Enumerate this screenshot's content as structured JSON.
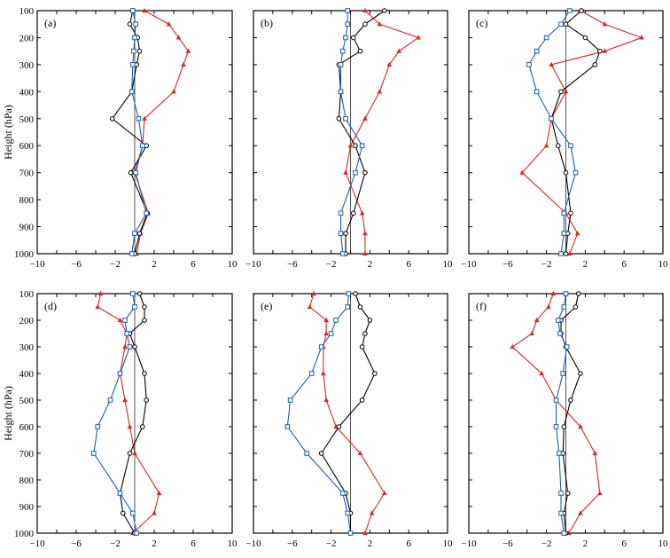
{
  "chart_data": {
    "type": "line",
    "ylabel": "Height (hPa)",
    "xlim": [
      -10,
      10
    ],
    "ylim": [
      1000,
      100
    ],
    "xticks": [
      "−10",
      "−6",
      "−2",
      "2",
      "6",
      "10"
    ],
    "xtick_values": [
      -10,
      -6,
      -2,
      2,
      6,
      10
    ],
    "yticks": [
      "100",
      "200",
      "300",
      "400",
      "500",
      "600",
      "700",
      "800",
      "900",
      "1000"
    ],
    "ytick_values": [
      100,
      200,
      300,
      400,
      500,
      600,
      700,
      800,
      900,
      1000
    ],
    "levels": [
      100,
      150,
      200,
      250,
      300,
      400,
      500,
      600,
      700,
      850,
      925,
      1000
    ],
    "series_colors": {
      "red": "#d62728",
      "black": "#000000",
      "blue": "#1f5fa8"
    },
    "panels": [
      {
        "label": "(a)",
        "series": [
          {
            "color": "red",
            "marker": "triangle",
            "values": [
              1,
              3.5,
              4.5,
              5.5,
              5,
              4,
              1,
              0.8,
              0,
              1.4,
              0.6,
              0.2
            ]
          },
          {
            "color": "black",
            "marker": "circle",
            "values": [
              -0.2,
              -0.5,
              0.3,
              0.5,
              0.2,
              -0.3,
              -2.3,
              1.2,
              -0.4,
              1.3,
              0.5,
              0
            ]
          },
          {
            "color": "blue",
            "marker": "square",
            "values": [
              -0.2,
              0.1,
              0,
              -0.1,
              -0.2,
              -0.3,
              0.4,
              0.8,
              0.1,
              1.2,
              0,
              -0.3
            ]
          }
        ]
      },
      {
        "label": "(b)",
        "series": [
          {
            "color": "red",
            "marker": "triangle",
            "values": [
              1.5,
              3,
              7,
              5,
              4,
              3,
              1.5,
              0,
              -0.5,
              1.2,
              1.5,
              1.5
            ]
          },
          {
            "color": "black",
            "marker": "circle",
            "values": [
              3.5,
              1.5,
              0.3,
              1,
              -1.2,
              -1,
              -1.2,
              0.5,
              1.5,
              0.3,
              -0.5,
              -0.5
            ]
          },
          {
            "color": "blue",
            "marker": "square",
            "values": [
              -0.3,
              -0.3,
              -0.5,
              -0.8,
              -1,
              -1,
              -0.5,
              1.2,
              0.5,
              -1,
              -1,
              -0.8
            ]
          }
        ]
      },
      {
        "label": "(c)",
        "series": [
          {
            "color": "red",
            "marker": "triangle",
            "values": [
              1.5,
              4,
              7.8,
              4,
              -1.5,
              0,
              -1.5,
              -2,
              -4.5,
              0,
              1.2,
              0.4
            ]
          },
          {
            "color": "black",
            "marker": "circle",
            "values": [
              1.6,
              0,
              2,
              3.5,
              3,
              -0.5,
              -1.5,
              -0.8,
              0,
              0.5,
              0.2,
              0
            ]
          },
          {
            "color": "blue",
            "marker": "square",
            "values": [
              0.4,
              -0.5,
              -2,
              -3,
              -3.8,
              -3,
              -1.5,
              0.5,
              1,
              -0.2,
              -0.2,
              -0.5
            ]
          }
        ]
      },
      {
        "label": "(d)",
        "series": [
          {
            "color": "red",
            "marker": "triangle",
            "values": [
              -3.5,
              -3.8,
              -1.5,
              -0.8,
              -1,
              -1.5,
              -1,
              -0.5,
              0,
              2.5,
              2,
              -0.2
            ]
          },
          {
            "color": "black",
            "marker": "circle",
            "values": [
              0.5,
              1,
              1,
              -0.5,
              0,
              1,
              1.2,
              0.8,
              -0.5,
              -1.5,
              -1.2,
              0
            ]
          },
          {
            "color": "blue",
            "marker": "square",
            "values": [
              -0.2,
              0,
              -1,
              -0.8,
              -0.5,
              -1.5,
              -2.5,
              -3.8,
              -4.2,
              -1.5,
              -0.2,
              0.2
            ]
          }
        ]
      },
      {
        "label": "(e)",
        "series": [
          {
            "color": "red",
            "marker": "triangle",
            "values": [
              -3.8,
              -4.2,
              -2.5,
              -2.5,
              -2.8,
              -2.8,
              -2.5,
              -1.5,
              1,
              3.5,
              2.2,
              1.5
            ]
          },
          {
            "color": "black",
            "marker": "circle",
            "values": [
              0.5,
              1,
              2,
              1.5,
              1.2,
              2.5,
              1.2,
              -1.2,
              -3,
              -0.5,
              0,
              0
            ]
          },
          {
            "color": "blue",
            "marker": "square",
            "values": [
              -0.2,
              -0.3,
              -1.5,
              -2,
              -3,
              -4,
              -6.2,
              -6.5,
              -4.5,
              -0.8,
              -0.3,
              0
            ]
          }
        ]
      },
      {
        "label": "(f)",
        "series": [
          {
            "color": "red",
            "marker": "triangle",
            "values": [
              -1.3,
              -1.8,
              -3,
              -3.5,
              -5.5,
              -2.5,
              -1,
              1.5,
              3,
              3.5,
              1.5,
              0.3
            ]
          },
          {
            "color": "black",
            "marker": "circle",
            "values": [
              1.3,
              1,
              -0.5,
              -0.5,
              0,
              1.5,
              0.5,
              -0.2,
              -0.3,
              0.2,
              -0.2,
              0
            ]
          },
          {
            "color": "blue",
            "marker": "square",
            "values": [
              0,
              -0.2,
              -0.8,
              -0.6,
              0.1,
              -0.3,
              -1,
              -1,
              -0.7,
              -0.5,
              -0.5,
              -0.2
            ]
          }
        ]
      }
    ]
  }
}
